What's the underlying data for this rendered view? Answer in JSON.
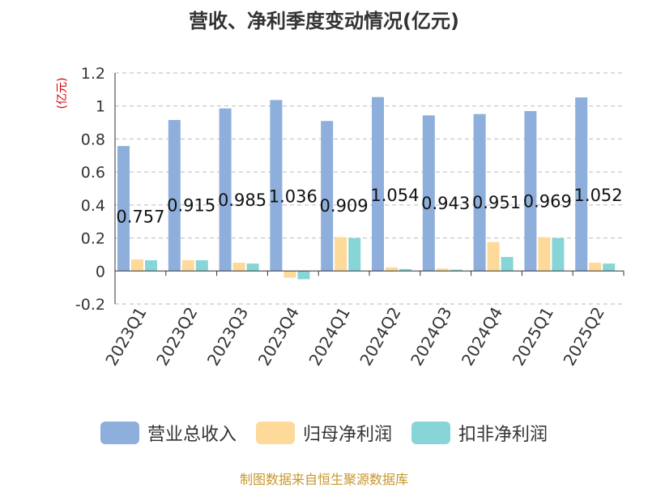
{
  "chart_data": {
    "type": "bar",
    "title": "营收、净利季度变动情况(亿元)",
    "unit_label": "(亿元)",
    "categories": [
      "2023Q1",
      "2023Q2",
      "2023Q3",
      "2023Q4",
      "2024Q1",
      "2024Q2",
      "2024Q3",
      "2024Q4",
      "2025Q1",
      "2025Q2"
    ],
    "series": [
      {
        "name": "营业总收入",
        "color": "#8eafdc",
        "values": [
          0.757,
          0.915,
          0.985,
          1.036,
          0.909,
          1.054,
          0.943,
          0.951,
          0.969,
          1.052
        ]
      },
      {
        "name": "归母净利润",
        "color": "#fdd99a",
        "values": [
          0.07,
          0.065,
          0.05,
          -0.04,
          0.205,
          0.022,
          0.015,
          0.175,
          0.205,
          0.05
        ]
      },
      {
        "name": "扣非净利润",
        "color": "#88d5d8",
        "values": [
          0.065,
          0.065,
          0.045,
          -0.05,
          0.2,
          0.012,
          0.008,
          0.085,
          0.2,
          0.045
        ]
      }
    ],
    "data_labels": [
      "0.757",
      "0.915",
      "0.985",
      "1.036",
      "0.909",
      "1.054",
      "0.943",
      "0.951",
      "0.969",
      "1.052"
    ],
    "ylim": [
      -0.2,
      1.2
    ],
    "yticks": [
      "-0.2",
      "0",
      "0.2",
      "0.4",
      "0.6",
      "0.8",
      "1",
      "1.2"
    ],
    "grid": true,
    "legend_position": "bottom"
  },
  "source": "制图数据来自恒生聚源数据库"
}
